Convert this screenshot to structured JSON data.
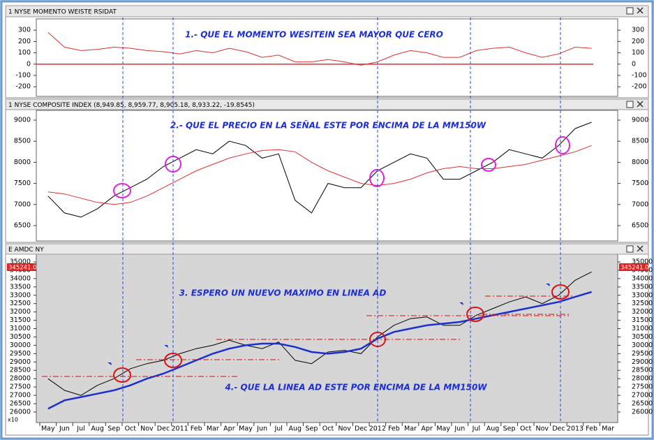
{
  "chart_data": [
    {
      "type": "line",
      "title": "1 NYSE MOMENTO WEISTE RSIDAT",
      "annotations": [
        "1.- QUE EL MOMENTO WESITEIN SEA MAYOR QUE CERO"
      ],
      "ylim": [
        -285,
        400
      ],
      "yticks": [
        300,
        200,
        100,
        0,
        -100,
        -200
      ],
      "reference_line": 0,
      "series": [
        {
          "color": "#e03030",
          "values": [
            280,
            150,
            120,
            130,
            150,
            140,
            120,
            110,
            90,
            120,
            100,
            140,
            110,
            60,
            80,
            20,
            20,
            40,
            20,
            -10,
            20,
            80,
            120,
            100,
            60,
            60,
            120,
            140,
            150,
            100,
            60,
            90,
            150,
            140,
            null
          ]
        }
      ]
    },
    {
      "type": "line",
      "title": "1 NYSE COMPOSITE INDEX (8,949.85, 8,959.77, 8,905.18, 8,933.22, -19.8545)",
      "annotations": [
        "2.- QUE EL PRECIO EN LA SEÑAL ESTE POR ENCIMA DE LA MM150W"
      ],
      "ylim": [
        6136,
        9232
      ],
      "yticks": [
        9000,
        8500,
        8000,
        7500,
        7000,
        6500
      ],
      "series": [
        {
          "color": "#000000",
          "values": [
            7200,
            6800,
            6700,
            6900,
            7200,
            7400,
            7600,
            7900,
            8100,
            8300,
            8200,
            8500,
            8400,
            8100,
            8200,
            7100,
            6800,
            7500,
            7400,
            7400,
            7800,
            8000,
            8200,
            8100,
            7600,
            7600,
            7800,
            8000,
            8300,
            8200,
            8100,
            8400,
            8800,
            8950,
            null
          ]
        },
        {
          "color": "#e03030",
          "values": [
            7300,
            7250,
            7150,
            7050,
            7000,
            7050,
            7200,
            7400,
            7600,
            7800,
            7950,
            8100,
            8200,
            8280,
            8300,
            8250,
            8000,
            7800,
            7650,
            7500,
            7450,
            7500,
            7600,
            7750,
            7850,
            7900,
            7850,
            7850,
            7900,
            7950,
            8050,
            8150,
            8250,
            8400,
            null
          ]
        }
      ]
    },
    {
      "type": "line",
      "title": "E AMDC NY",
      "last_value_label": "345241.0",
      "multiplier": "x10",
      "annotations": [
        "3. ESPERO UN NUEVO MAXIMO EN LINEA AD",
        "4.- QUE LA LINEA AD ESTE POR ENCIMA DE LA MM150W"
      ],
      "ylim": [
        25370,
        35460
      ],
      "yticks": [
        35000,
        34500,
        34000,
        33500,
        33000,
        32500,
        32000,
        31500,
        31000,
        30500,
        30000,
        29500,
        29000,
        28500,
        28000,
        27500,
        27000,
        26500,
        26000
      ],
      "categories": [
        "May",
        "Jun",
        "Jul",
        "Aug",
        "Sep",
        "Oct",
        "Nov",
        "Dec",
        "2011",
        "Feb",
        "Mar",
        "Apr",
        "May",
        "Jun",
        "Jul",
        "Aug",
        "Sep",
        "Oct",
        "Nov",
        "Dec",
        "2012",
        "Feb",
        "Mar",
        "Apr",
        "May",
        "Jun",
        "Jul",
        "Aug",
        "Sep",
        "Oct",
        "Nov",
        "Dec",
        "2013",
        "Feb",
        "Mar"
      ],
      "series": [
        {
          "color": "#000000",
          "values": [
            28000,
            27300,
            27000,
            27600,
            28000,
            28600,
            28900,
            29100,
            29500,
            29800,
            30000,
            30300,
            30000,
            29800,
            30200,
            29100,
            28900,
            29600,
            29700,
            29500,
            30500,
            31200,
            31600,
            31700,
            31200,
            31200,
            31800,
            32200,
            32600,
            32900,
            32500,
            33000,
            33900,
            34400,
            null
          ]
        },
        {
          "color": "#1c2fd0",
          "values": [
            26200,
            26700,
            26900,
            27100,
            27300,
            27600,
            28000,
            28300,
            28700,
            29100,
            29500,
            29800,
            30000,
            30100,
            30100,
            29900,
            29600,
            29500,
            29600,
            29800,
            30400,
            30800,
            31000,
            31200,
            31300,
            31400,
            31600,
            31800,
            32000,
            32200,
            32400,
            32600,
            32900,
            33200,
            null
          ]
        }
      ]
    }
  ]
}
